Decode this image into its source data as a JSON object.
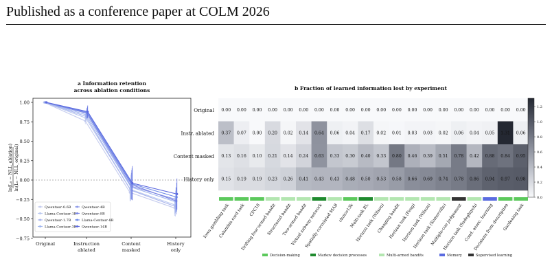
{
  "header": "Published as a conference paper at COLM 2026",
  "panel_a": {
    "letter": "a",
    "title_line1": "Information retention",
    "title_line2": "across ablation conditions",
    "ylabel_num": "ln(L₀ − NLL_ablation)",
    "ylabel_den": "ln(L₀ − NLL_original)",
    "legend": [
      "Qwentaur-0.6B",
      "Llama-Centaur-1B",
      "Qwentaur-1.7B",
      "Llama-Centaur-3B",
      "Qwentaur-4B",
      "Qwentaur-8B",
      "Llama-Centaur-8B",
      "Qwentaur-14B"
    ]
  },
  "panel_b": {
    "letter": "b",
    "title": "Fraction of learned information lost by experiment",
    "legend": [
      {
        "label": "Decision-making",
        "color": "#5cc95c"
      },
      {
        "label": "Markov decision processes",
        "color": "#1f8a2e"
      },
      {
        "label": "Multi-armed bandits",
        "color": "#b3e6b0"
      },
      {
        "label": "Memory",
        "color": "#5a6be0"
      },
      {
        "label": "Supervised learning",
        "color": "#333333"
      }
    ]
  },
  "chart_data": [
    {
      "type": "line",
      "title": "a  Information retention across ablation conditions",
      "ylabel": "ln(L₀ − NLL_ablation) / ln(L₀ − NLL_original)",
      "categories": [
        "Original",
        "Instruction ablated",
        "Content masked",
        "History only"
      ],
      "category_labels": [
        [
          "Original"
        ],
        [
          "Instruction",
          "ablated"
        ],
        [
          "Content",
          "masked"
        ],
        [
          "History",
          "only"
        ]
      ],
      "ylim": [
        -0.8,
        1.1
      ],
      "yticks": [
        -0.75,
        -0.5,
        -0.25,
        0.0,
        0.25,
        0.5,
        0.75,
        1.0
      ],
      "ytick_labels": [
        "−0.75",
        "−0.50",
        "−0.25",
        "0.00",
        "0.25",
        "0.50",
        "0.75",
        "1.00"
      ],
      "series": [
        {
          "name": "Qwentaur-0.6B",
          "color": "#c4cbee",
          "values": [
            1.0,
            0.76,
            -0.16,
            -0.36
          ]
        },
        {
          "name": "Llama-Centaur-1B",
          "color": "#b9c8f0",
          "values": [
            1.0,
            0.8,
            -0.12,
            -0.32
          ]
        },
        {
          "name": "Qwentaur-1.7B",
          "color": "#a8b4ec",
          "values": [
            1.0,
            0.82,
            -0.13,
            -0.34
          ]
        },
        {
          "name": "Llama-Centaur-3B",
          "color": "#9fb5ee",
          "values": [
            1.0,
            0.84,
            -0.09,
            -0.28
          ]
        },
        {
          "name": "Qwentaur-4B",
          "color": "#8d99e8",
          "values": [
            1.0,
            0.86,
            -0.08,
            -0.25
          ]
        },
        {
          "name": "Qwentaur-8B",
          "color": "#7b86e4",
          "values": [
            1.0,
            0.86,
            -0.06,
            -0.27
          ]
        },
        {
          "name": "Llama-Centaur-8B",
          "color": "#6f8be8",
          "values": [
            1.0,
            0.87,
            -0.05,
            -0.22
          ]
        },
        {
          "name": "Qwentaur-14B",
          "color": "#5b68df",
          "values": [
            1.0,
            0.88,
            -0.04,
            -0.18
          ]
        }
      ]
    },
    {
      "type": "heatmap",
      "title": "b  Fraction of learned information lost by experiment",
      "rows": [
        "Original",
        "Instr. ablated",
        "Content masked",
        "History only"
      ],
      "columns": [
        "Iowa gambling task",
        "Columbia card task",
        "CPC18",
        "Drifting four-armed bandit",
        "Structured bandit",
        "Two-armed bandit",
        "Virtual subway network",
        "Spatially correlated MAB",
        "choice13k",
        "Multi-task RL",
        "Horizon task (Wilson)",
        "Changing bandit",
        "Horizon task (Feng)",
        "Horizon task (Wilson)",
        "Horizon task (Somerville)",
        "Multiple-cue judgement",
        "Horizon task (Sadeghiyeh)",
        "Cond. assoc. learning",
        "Decisions from description",
        "Gardening task"
      ],
      "column_categories": [
        "Decision-making",
        "Decision-making",
        "Decision-making",
        "Multi-armed bandits",
        "Multi-armed bandits",
        "Multi-armed bandits",
        "Markov decision processes",
        "Multi-armed bandits",
        "Decision-making",
        "Markov decision processes",
        "Multi-armed bandits",
        "Multi-armed bandits",
        "Multi-armed bandits",
        "Multi-armed bandits",
        "Multi-armed bandits",
        "Supervised learning",
        "Multi-armed bandits",
        "Memory",
        "Decision-making",
        "Decision-making"
      ],
      "values": [
        [
          0.0,
          0.0,
          0.0,
          0.0,
          0.0,
          0.0,
          0.0,
          0.0,
          0.0,
          0.0,
          0.0,
          0.0,
          0.0,
          0.0,
          0.0,
          0.0,
          0.0,
          0.0,
          0.0,
          0.0
        ],
        [
          0.37,
          0.07,
          0.0,
          0.2,
          0.02,
          0.14,
          0.64,
          0.06,
          0.04,
          0.17,
          0.02,
          0.01,
          0.03,
          0.03,
          0.02,
          0.06,
          0.04,
          0.05,
          1.31,
          0.06
        ],
        [
          0.13,
          0.16,
          0.1,
          0.21,
          0.14,
          0.24,
          0.63,
          0.33,
          0.3,
          0.4,
          0.33,
          0.8,
          0.46,
          0.39,
          0.51,
          0.78,
          0.42,
          0.88,
          0.84,
          0.95
        ],
        [
          0.15,
          0.19,
          0.19,
          0.23,
          0.26,
          0.41,
          0.43,
          0.43,
          0.48,
          0.5,
          0.53,
          0.58,
          0.66,
          0.69,
          0.74,
          0.78,
          0.86,
          0.94,
          0.97,
          0.98
        ]
      ],
      "colorbar_range": [
        0.0,
        1.3
      ],
      "colorbar_ticks": [
        0.0,
        0.2,
        0.4,
        0.6,
        0.8,
        1.0,
        1.2
      ],
      "colorbar_tick_labels": [
        "0.0",
        "0.2",
        "0.4",
        "0.6",
        "0.8",
        "1.0",
        "1.2"
      ]
    }
  ]
}
